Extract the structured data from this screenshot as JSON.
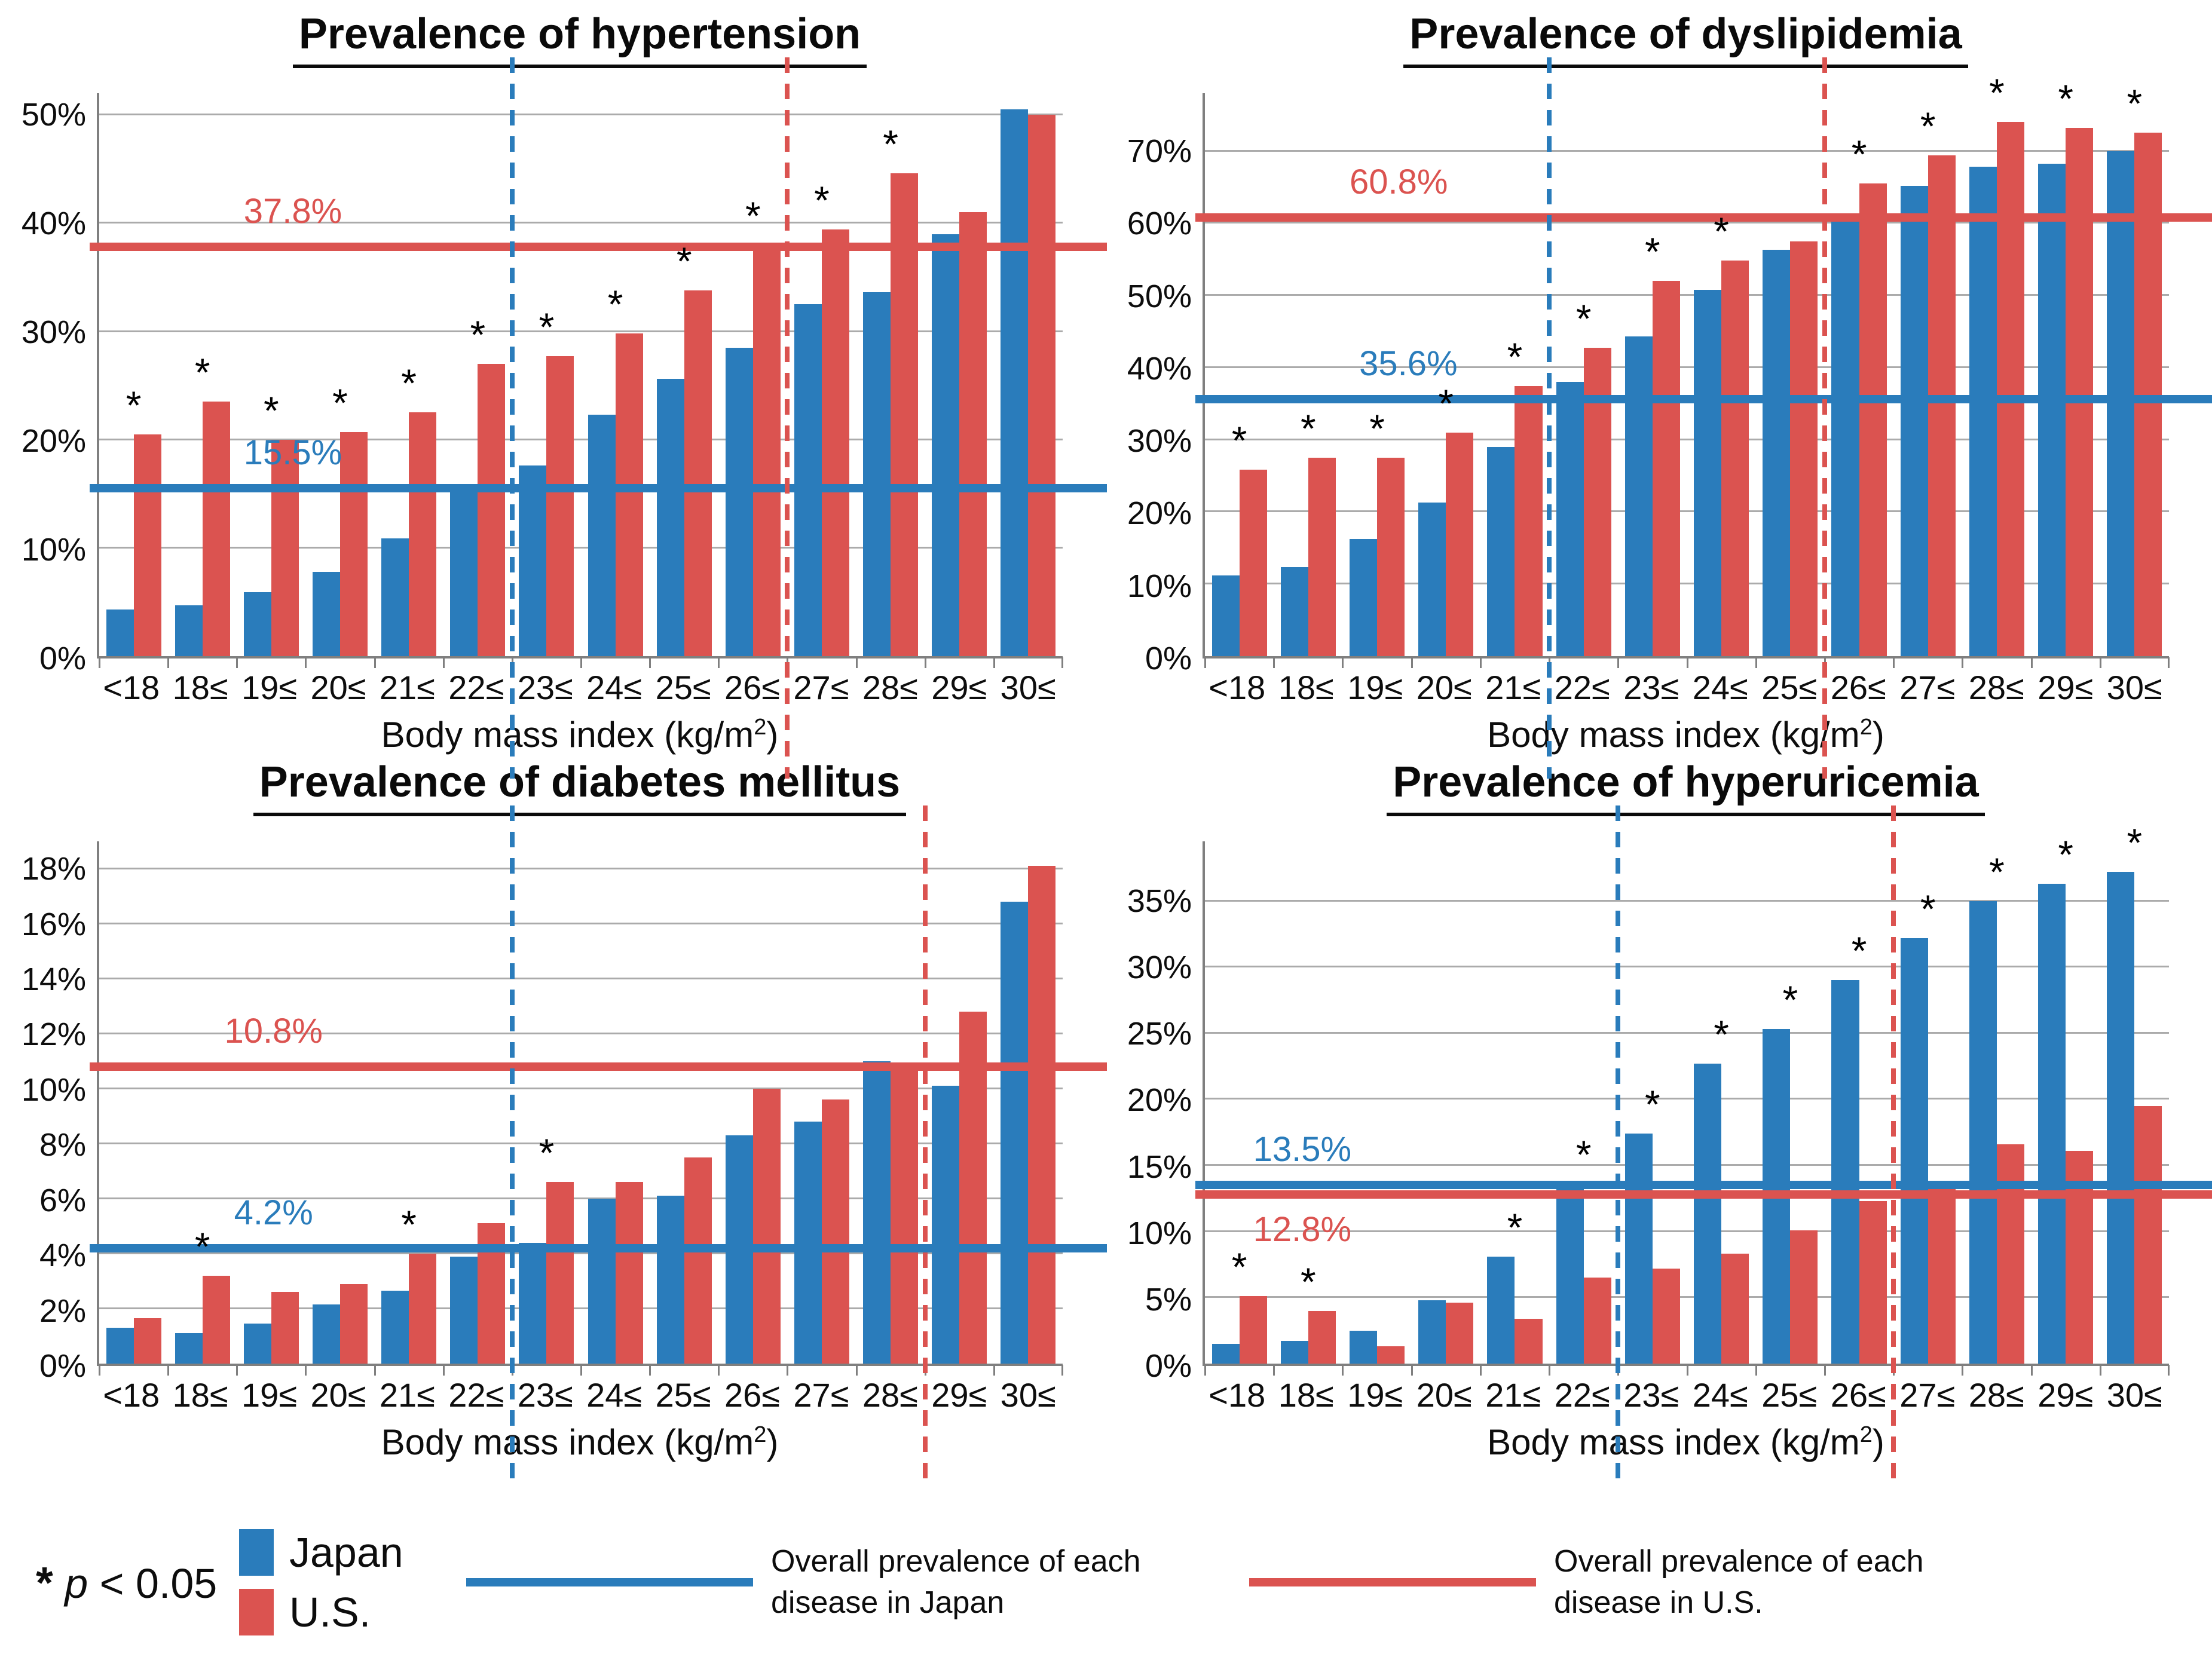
{
  "colors": {
    "japan_blue": "#2A7CBB",
    "us_red": "#DB5350",
    "gridline": "#ABABAB",
    "axis": "#7F7F7F",
    "title_text": "#0A0A0A"
  },
  "shared": {
    "xlabel_prefix": "Body mass index (kg/m",
    "xlabel_sup": "2",
    "xlabel_suffix": ")"
  },
  "legend": {
    "sig_star": "*",
    "sig_p": "p",
    "sig_rest": "< 0.05",
    "japan_label": "Japan",
    "us_label": "U.S.",
    "japan_line_label": "Overall prevalence of each disease in Japan",
    "us_line_label": "Overall prevalence of each disease in U.S."
  },
  "chart_data": [
    {
      "type": "bar",
      "title": "Prevalence of hypertension",
      "xlabel": "Body mass index (kg/m2)",
      "categories": [
        "<18",
        "18≤",
        "19≤",
        "20≤",
        "21≤",
        "22≤",
        "23≤",
        "24≤",
        "25≤",
        "26≤",
        "27≤",
        "28≤",
        "29≤",
        "30≤"
      ],
      "series": [
        {
          "name": "Japan",
          "values": [
            4.3,
            4.7,
            5.9,
            7.8,
            10.9,
            15.8,
            17.6,
            22.3,
            25.6,
            28.5,
            32.5,
            33.6,
            39.0,
            50.5
          ]
        },
        {
          "name": "U.S.",
          "values": [
            20.5,
            23.5,
            20.0,
            20.7,
            22.5,
            27.0,
            27.7,
            29.8,
            33.8,
            38.0,
            39.4,
            44.6,
            41.0,
            50.0
          ]
        }
      ],
      "ylim": [
        0,
        52
      ],
      "yticks": [
        0,
        10,
        20,
        30,
        40,
        50
      ],
      "ytick_labels": [
        "0%",
        "10%",
        "20%",
        "30%",
        "40%",
        "50%"
      ],
      "grid": true,
      "ref_lines": [
        {
          "country": "Japan",
          "label": "15.5%",
          "value": 15.5,
          "label_x_pct": 15,
          "label_pos": "above"
        },
        {
          "country": "U.S.",
          "label": "37.8%",
          "value": 37.8,
          "label_x_pct": 15,
          "label_pos": "above"
        }
      ],
      "dashed_lines": [
        {
          "country": "Japan",
          "after_category": "22≤"
        },
        {
          "country": "U.S.",
          "after_category": "26≤"
        }
      ],
      "significant_categories": [
        "<18",
        "18≤",
        "19≤",
        "20≤",
        "21≤",
        "22≤",
        "23≤",
        "24≤",
        "25≤",
        "26≤",
        "27≤",
        "28≤"
      ]
    },
    {
      "type": "bar",
      "title": "Prevalence of dyslipidemia",
      "xlabel": "Body mass index (kg/m2)",
      "categories": [
        "<18",
        "18≤",
        "19≤",
        "20≤",
        "21≤",
        "22≤",
        "23≤",
        "24≤",
        "25≤",
        "26≤",
        "27≤",
        "28≤",
        "29≤",
        "30≤"
      ],
      "series": [
        {
          "name": "Japan",
          "values": [
            11.2,
            12.3,
            16.2,
            21.3,
            29.0,
            38.0,
            44.3,
            50.8,
            56.3,
            61.0,
            65.2,
            67.8,
            68.2,
            70.0
          ]
        },
        {
          "name": "U.S.",
          "values": [
            25.8,
            27.5,
            27.5,
            31.0,
            37.4,
            42.7,
            52.0,
            54.8,
            57.5,
            65.5,
            69.4,
            74.0,
            73.2,
            72.5
          ]
        }
      ],
      "ylim": [
        0,
        78
      ],
      "yticks": [
        0,
        10,
        20,
        30,
        40,
        50,
        60,
        70
      ],
      "ytick_labels": [
        "0%",
        "10%",
        "20%",
        "30%",
        "40%",
        "50%",
        "60%",
        "70%"
      ],
      "grid": true,
      "ref_lines": [
        {
          "country": "Japan",
          "label": "35.6%",
          "value": 35.6,
          "label_x_pct": 16,
          "label_pos": "above"
        },
        {
          "country": "U.S.",
          "label": "60.8%",
          "value": 60.8,
          "label_x_pct": 15,
          "label_pos": "above"
        }
      ],
      "dashed_lines": [
        {
          "country": "Japan",
          "after_category": "21≤"
        },
        {
          "country": "U.S.",
          "after_category": "25≤"
        }
      ],
      "significant_categories": [
        "<18",
        "18≤",
        "19≤",
        "20≤",
        "21≤",
        "22≤",
        "23≤",
        "24≤",
        "26≤",
        "27≤",
        "28≤",
        "29≤",
        "30≤"
      ]
    },
    {
      "type": "bar",
      "title": "Prevalence of diabetes mellitus",
      "xlabel": "Body mass index (kg/m2)",
      "categories": [
        "<18",
        "18≤",
        "19≤",
        "20≤",
        "21≤",
        "22≤",
        "23≤",
        "24≤",
        "25≤",
        "26≤",
        "27≤",
        "28≤",
        "29≤",
        "30≤"
      ],
      "series": [
        {
          "name": "Japan",
          "values": [
            1.3,
            1.1,
            1.45,
            2.15,
            2.65,
            3.9,
            4.4,
            6.0,
            6.1,
            8.3,
            8.8,
            11.0,
            10.1,
            16.8
          ]
        },
        {
          "name": "U.S.",
          "values": [
            1.65,
            3.2,
            2.6,
            2.9,
            4.0,
            5.1,
            6.6,
            6.6,
            7.5,
            10.0,
            9.6,
            10.7,
            12.8,
            18.1
          ]
        }
      ],
      "ylim": [
        0,
        19
      ],
      "yticks": [
        0,
        2,
        4,
        6,
        8,
        10,
        12,
        14,
        16,
        18
      ],
      "ytick_labels": [
        "0%",
        "2%",
        "4%",
        "6%",
        "8%",
        "10%",
        "12%",
        "14%",
        "16%",
        "18%"
      ],
      "grid": true,
      "ref_lines": [
        {
          "country": "Japan",
          "label": "4.2%",
          "value": 4.2,
          "label_x_pct": 14,
          "label_pos": "above"
        },
        {
          "country": "U.S.",
          "label": "10.8%",
          "value": 10.8,
          "label_x_pct": 13,
          "label_pos": "above"
        }
      ],
      "dashed_lines": [
        {
          "country": "Japan",
          "after_category": "22≤"
        },
        {
          "country": "U.S.",
          "after_category": "28≤"
        }
      ],
      "significant_categories": [
        "18≤",
        "21≤",
        "23≤"
      ]
    },
    {
      "type": "bar",
      "title": "Prevalence of hyperuricemia",
      "xlabel": "Body mass index (kg/m2)",
      "categories": [
        "<18",
        "18≤",
        "19≤",
        "20≤",
        "21≤",
        "22≤",
        "23≤",
        "24≤",
        "25≤",
        "26≤",
        "27≤",
        "28≤",
        "29≤",
        "30≤"
      ],
      "series": [
        {
          "name": "Japan",
          "values": [
            1.5,
            1.7,
            2.5,
            4.8,
            8.1,
            13.6,
            17.4,
            22.7,
            25.3,
            29.0,
            32.2,
            35.0,
            36.3,
            37.2
          ]
        },
        {
          "name": "U.S.",
          "values": [
            5.1,
            4.0,
            1.3,
            4.6,
            3.4,
            6.5,
            7.2,
            8.3,
            10.1,
            12.3,
            13.4,
            16.6,
            16.1,
            19.5
          ]
        }
      ],
      "ylim": [
        0,
        39.5
      ],
      "yticks": [
        0,
        5,
        10,
        15,
        20,
        25,
        30,
        35
      ],
      "ytick_labels": [
        "0%",
        "5%",
        "10%",
        "15%",
        "20%",
        "25%",
        "30%",
        "35%"
      ],
      "grid": true,
      "ref_lines": [
        {
          "country": "Japan",
          "label": "13.5%",
          "value": 13.5,
          "label_x_pct": 5,
          "label_pos": "above"
        },
        {
          "country": "U.S.",
          "label": "12.8%",
          "value": 12.8,
          "label_x_pct": 5,
          "label_pos": "below"
        }
      ],
      "dashed_lines": [
        {
          "country": "Japan",
          "after_category": "22≤"
        },
        {
          "country": "U.S.",
          "after_category": "26≤"
        }
      ],
      "significant_categories": [
        "<18",
        "18≤",
        "21≤",
        "22≤",
        "23≤",
        "24≤",
        "25≤",
        "26≤",
        "27≤",
        "28≤",
        "29≤",
        "30≤"
      ]
    }
  ]
}
